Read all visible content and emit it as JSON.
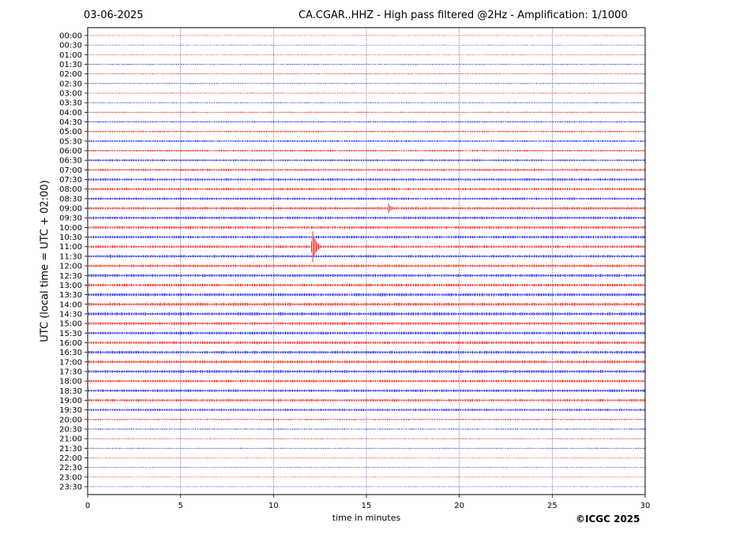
{
  "header": {
    "date": "03-06-2025",
    "title": "CA.CGAR..HHZ - High pass filtered @2Hz - Amplification: 1/1000"
  },
  "footer": {
    "copyright": "©ICGC 2025"
  },
  "chart_data": {
    "type": "line",
    "title": "CA.CGAR..HHZ - High pass filtered @2Hz - Amplification: 1/1000",
    "xlabel": "time in minutes",
    "ylabel": "UTC (local time = UTC + 02:00)",
    "xlim": [
      0,
      30
    ],
    "x_ticks": [
      0,
      5,
      10,
      15,
      20,
      25,
      30
    ],
    "grid": "vertical dotted lines at each x tick",
    "trace_colors": [
      "#ff0000",
      "#0000ff"
    ],
    "rows": [
      "00:00",
      "00:30",
      "01:00",
      "01:30",
      "02:00",
      "02:30",
      "03:00",
      "03:30",
      "04:00",
      "04:30",
      "05:00",
      "05:30",
      "06:00",
      "06:30",
      "07:00",
      "07:30",
      "08:00",
      "08:30",
      "09:00",
      "09:30",
      "10:00",
      "10:30",
      "11:00",
      "11:30",
      "12:00",
      "12:30",
      "13:00",
      "13:30",
      "14:00",
      "14:30",
      "15:00",
      "15:30",
      "16:00",
      "16:30",
      "17:00",
      "17:30",
      "18:00",
      "18:30",
      "19:00",
      "19:30",
      "20:00",
      "20:30",
      "21:00",
      "21:30",
      "22:00",
      "22:30",
      "23:00",
      "23:30"
    ],
    "noise_levels": [
      0.3,
      0.3,
      0.3,
      0.4,
      0.4,
      0.4,
      0.4,
      0.4,
      0.5,
      0.6,
      0.7,
      0.8,
      0.8,
      0.9,
      1.0,
      1.1,
      1.1,
      1.1,
      1.2,
      1.2,
      1.2,
      1.2,
      1.2,
      1.2,
      1.2,
      1.3,
      1.3,
      1.4,
      1.4,
      1.4,
      1.3,
      1.3,
      1.3,
      1.3,
      1.3,
      1.3,
      1.2,
      1.2,
      1.1,
      1.0,
      0.6,
      0.5,
      0.4,
      0.4,
      0.3,
      0.3,
      0.3,
      0.3
    ],
    "events": [
      {
        "row": "09:00",
        "minute": 16.2,
        "amplitude": 8,
        "duration": 0.35
      },
      {
        "row": "11:00",
        "minute": 12.1,
        "amplitude": 22,
        "duration": 0.6
      },
      {
        "row": "11:30",
        "minute": 1.2,
        "amplitude": 3,
        "duration": 0.5
      },
      {
        "row": "14:30",
        "minute": 3.4,
        "amplitude": 2.5,
        "duration": 0.3
      }
    ]
  }
}
